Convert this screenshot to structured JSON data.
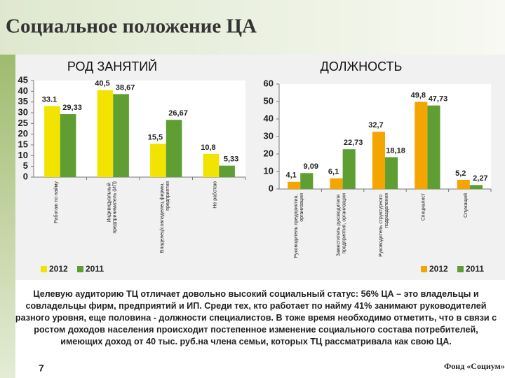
{
  "slide": {
    "title": "Социальное положение ЦА",
    "body": "Целевую аудиторию ТЦ отличает довольно высокий социальный статус: 56% ЦА – это владельцы и совладельцы фирм, предприятий и ИП. Среди тех, кто работает по найму 41% занимают руководителей разного уровня, еще половина - должности специалистов. В тоже время необходимо отметить, что в связи с ростом доходов населения происходит постепенное изменение социального состава потребителей, имеющих доход от 40 тыс. руб.на члена семьи, которых ТЦ рассматривала как свою ЦА.",
    "page_number": "7",
    "footer": "Фонд «Социум»"
  },
  "chart_data": [
    {
      "type": "bar",
      "title": "РОД ЗАНЯТИЙ",
      "categories": [
        "Работаю по найму",
        "Индивидуальный предприниматель (ИП)",
        "Владелец/совладелец фирмы, предприятия",
        "Не работаю"
      ],
      "series": [
        {
          "name": "2012",
          "color": "#f2e400",
          "values": [
            33.1,
            40.5,
            15.5,
            10.8
          ],
          "value_labels": [
            "33.1",
            "40,5",
            "15,5",
            "10,8"
          ]
        },
        {
          "name": "2011",
          "color": "#5e9e32",
          "values": [
            29.33,
            38.67,
            26.67,
            5.33
          ],
          "value_labels": [
            "29,33",
            "38,67",
            "26,67",
            "5,33"
          ]
        }
      ],
      "ylim": [
        0,
        45
      ],
      "yticks": [
        0,
        5,
        10,
        15,
        20,
        25,
        30,
        35,
        40,
        45
      ],
      "grid": false,
      "legend": "bottom-left"
    },
    {
      "type": "bar",
      "title": "ДОЛЖНОСТЬ",
      "categories": [
        "Руководитель предприятия, организации",
        "Заместитель руководителя предприятия, организации",
        "Руководитель структурного подразделения",
        "Специалист",
        "Служащий"
      ],
      "series": [
        {
          "name": "2012",
          "color": "#f5a500",
          "values": [
            4.1,
            6.1,
            32.7,
            49.8,
            5.2
          ],
          "value_labels": [
            "4,1",
            "6,1",
            "32,7",
            "49,8",
            "5,2"
          ]
        },
        {
          "name": "2011",
          "color": "#5e9e32",
          "values": [
            9.09,
            22.73,
            18.18,
            47.73,
            2.27
          ],
          "value_labels": [
            "9,09",
            "22,73",
            "18,18",
            "47,73",
            "2,27"
          ]
        }
      ],
      "ylim": [
        0,
        60
      ],
      "yticks": [
        0,
        10,
        20,
        30,
        40,
        50,
        60
      ],
      "grid": false,
      "legend": "bottom-right"
    }
  ]
}
